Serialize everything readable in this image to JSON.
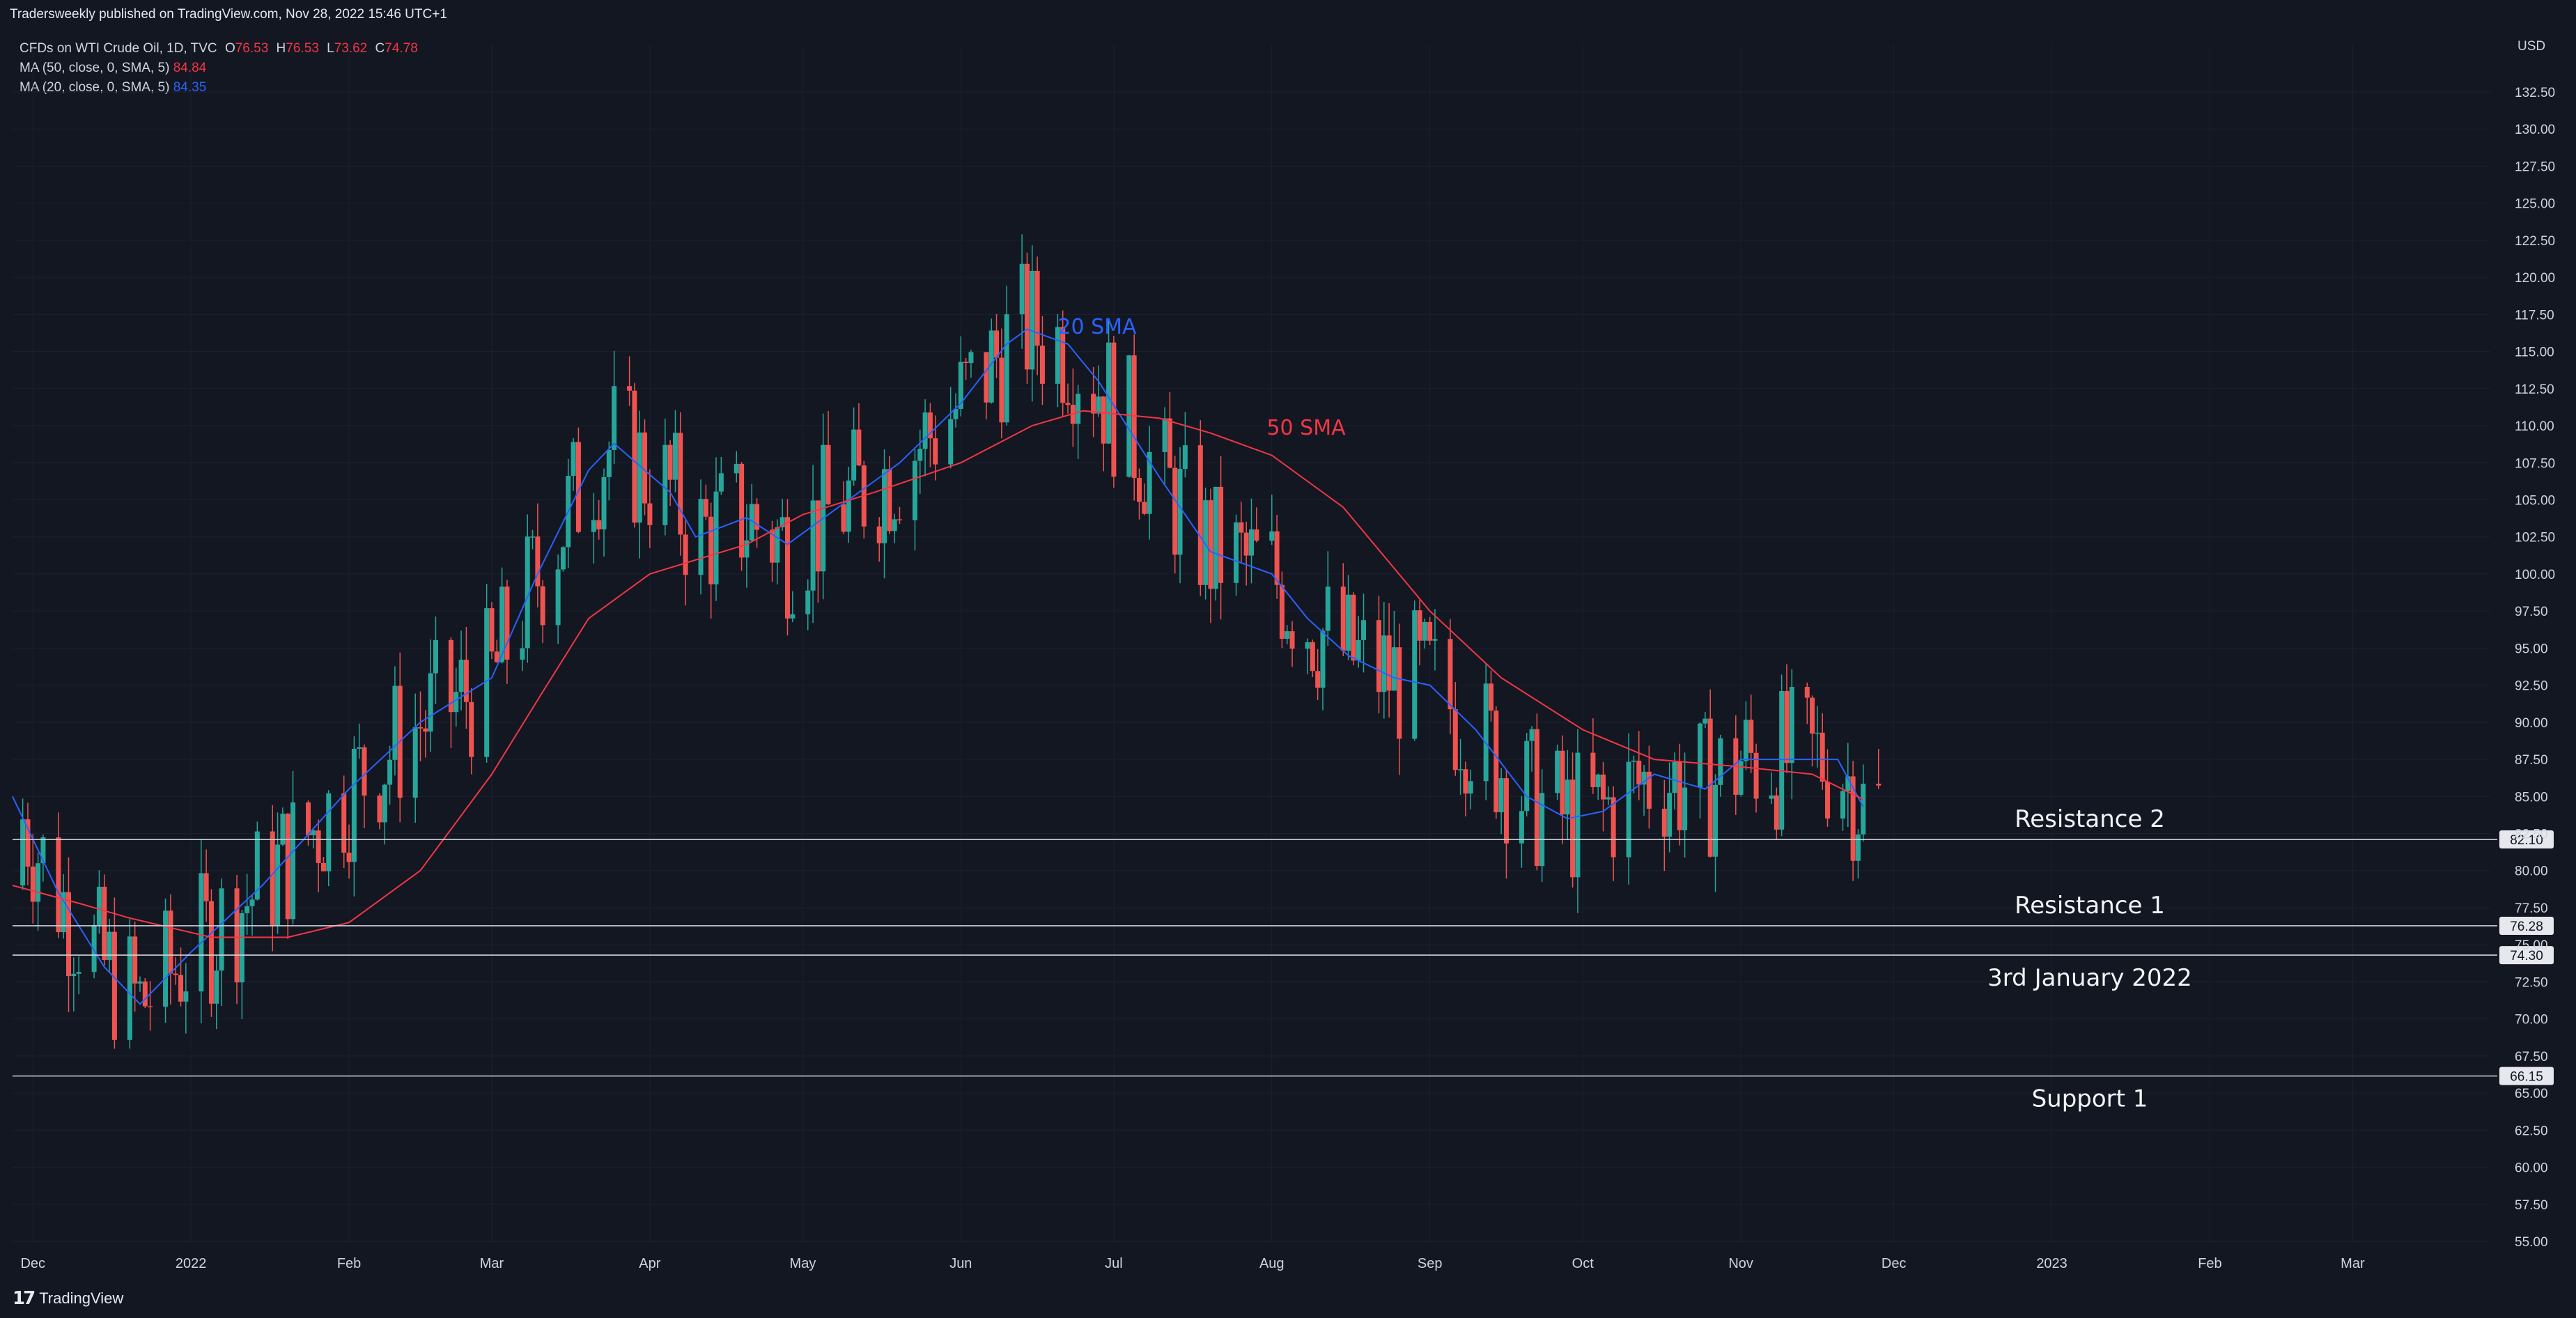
{
  "header": {
    "published": "Tradersweekly published on TradingView.com, Nov 28, 2022 15:46 UTC+1"
  },
  "legend": {
    "symbol": "CFDs on WTI Crude Oil, 1D, TVC",
    "open_label": "O",
    "open": "76.53",
    "high_label": "H",
    "high": "76.53",
    "low_label": "L",
    "low": "73.62",
    "close_label": "C",
    "close": "74.78",
    "ma50_label": "MA (50, close, 0, SMA, 5)",
    "ma50_value": "84.84",
    "ma20_label": "MA (20, close, 0, SMA, 5)",
    "ma20_value": "84.35"
  },
  "footer": {
    "brand": "TradingView",
    "icon": "tradingview-logo-icon"
  },
  "colors": {
    "background": "#131722",
    "up": "#26a69a",
    "down": "#ef5350",
    "sma20": "#2962ff",
    "sma50": "#f23645",
    "text": "#d1d4dc",
    "level": "#d1d4dc"
  },
  "chart_data": {
    "type": "candlestick",
    "title": "CFDs on WTI Crude Oil, 1D, TVC",
    "currency": "USD",
    "y_range": [
      55.0,
      135.0
    ],
    "y_ticks": [
      "132.50",
      "130.00",
      "127.50",
      "125.00",
      "122.50",
      "120.00",
      "117.50",
      "115.00",
      "112.50",
      "110.00",
      "107.50",
      "105.00",
      "102.50",
      "100.00",
      "97.50",
      "95.00",
      "92.50",
      "90.00",
      "87.50",
      "85.00",
      "82.50",
      "80.00",
      "77.50",
      "75.00",
      "72.50",
      "70.00",
      "67.50",
      "65.00",
      "62.50",
      "60.00",
      "57.50",
      "55.00"
    ],
    "x_range": [
      "2021-11-27",
      "2023-03-28"
    ],
    "x_ticks": [
      {
        "date": "2021-12-01",
        "label": "Dec"
      },
      {
        "date": "2022-01-01",
        "label": "2022"
      },
      {
        "date": "2022-02-01",
        "label": "Feb"
      },
      {
        "date": "2022-03-01",
        "label": "Mar"
      },
      {
        "date": "2022-04-01",
        "label": "Apr"
      },
      {
        "date": "2022-05-01",
        "label": "May"
      },
      {
        "date": "2022-06-01",
        "label": "Jun"
      },
      {
        "date": "2022-07-01",
        "label": "Jul"
      },
      {
        "date": "2022-08-01",
        "label": "Aug"
      },
      {
        "date": "2022-09-01",
        "label": "Sep"
      },
      {
        "date": "2022-10-01",
        "label": "Oct"
      },
      {
        "date": "2022-11-01",
        "label": "Nov"
      },
      {
        "date": "2022-12-01",
        "label": "Dec"
      },
      {
        "date": "2023-01-01",
        "label": "2023"
      },
      {
        "date": "2023-02-01",
        "label": "Feb"
      },
      {
        "date": "2023-03-01",
        "label": "Mar"
      }
    ],
    "levels": [
      {
        "name": "Resistance 2",
        "value": 82.1,
        "label": "82.10"
      },
      {
        "name": "Resistance 1",
        "value": 76.28,
        "label": "76.28"
      },
      {
        "name": "3rd January 2022",
        "value": 74.3,
        "label": "74.30"
      },
      {
        "name": "Support 1",
        "value": 66.15,
        "label": "66.15"
      }
    ],
    "annotations": [
      {
        "text": "20 SMA",
        "date": "2022-06-20",
        "price": 116.2,
        "color": "#2962ff"
      },
      {
        "text": "50 SMA",
        "date": "2022-07-31",
        "price": 109.4,
        "color": "#f23645"
      }
    ],
    "series": [
      {
        "name": "MA (20, close, 0, SMA, 5)",
        "color": "#2962ff",
        "points": [
          [
            "2021-11-27",
            85.0
          ],
          [
            "2021-12-06",
            78.5
          ],
          [
            "2021-12-15",
            73.5
          ],
          [
            "2021-12-22",
            71.0
          ],
          [
            "2022-01-01",
            74.5
          ],
          [
            "2022-01-15",
            79.0
          ],
          [
            "2022-02-01",
            85.5
          ],
          [
            "2022-02-15",
            90.0
          ],
          [
            "2022-03-01",
            93.0
          ],
          [
            "2022-03-10",
            100.0
          ],
          [
            "2022-03-20",
            107.0
          ],
          [
            "2022-03-25",
            108.8
          ],
          [
            "2022-04-05",
            105.5
          ],
          [
            "2022-04-10",
            102.5
          ],
          [
            "2022-04-20",
            103.8
          ],
          [
            "2022-04-28",
            102.0
          ],
          [
            "2022-05-08",
            104.5
          ],
          [
            "2022-05-20",
            107.5
          ],
          [
            "2022-06-01",
            111.5
          ],
          [
            "2022-06-10",
            115.5
          ],
          [
            "2022-06-14",
            116.5
          ],
          [
            "2022-06-22",
            115.5
          ],
          [
            "2022-06-28",
            113.0
          ],
          [
            "2022-07-10",
            106.5
          ],
          [
            "2022-07-20",
            101.5
          ],
          [
            "2022-08-01",
            100.0
          ],
          [
            "2022-08-08",
            97.0
          ],
          [
            "2022-08-16",
            94.5
          ],
          [
            "2022-08-25",
            93.0
          ],
          [
            "2022-09-01",
            92.5
          ],
          [
            "2022-09-10",
            89.5
          ],
          [
            "2022-09-20",
            85.0
          ],
          [
            "2022-09-28",
            83.5
          ],
          [
            "2022-10-05",
            84.0
          ],
          [
            "2022-10-15",
            86.5
          ],
          [
            "2022-10-25",
            85.5
          ],
          [
            "2022-11-01",
            87.5
          ],
          [
            "2022-11-12",
            87.5
          ],
          [
            "2022-11-20",
            87.5
          ],
          [
            "2022-11-25",
            84.3
          ]
        ]
      },
      {
        "name": "MA (50, close, 0, SMA, 5)",
        "color": "#f23645",
        "points": [
          [
            "2021-11-27",
            79.0
          ],
          [
            "2021-12-10",
            77.8
          ],
          [
            "2021-12-20",
            76.8
          ],
          [
            "2022-01-05",
            75.5
          ],
          [
            "2022-01-20",
            75.5
          ],
          [
            "2022-02-01",
            76.5
          ],
          [
            "2022-02-15",
            80.0
          ],
          [
            "2022-03-01",
            86.5
          ],
          [
            "2022-03-10",
            91.5
          ],
          [
            "2022-03-20",
            97.0
          ],
          [
            "2022-04-01",
            100.0
          ],
          [
            "2022-04-20",
            102.0
          ],
          [
            "2022-05-01",
            104.0
          ],
          [
            "2022-05-15",
            105.5
          ],
          [
            "2022-06-01",
            107.5
          ],
          [
            "2022-06-15",
            110.0
          ],
          [
            "2022-06-25",
            111.0
          ],
          [
            "2022-07-10",
            110.5
          ],
          [
            "2022-07-20",
            109.5
          ],
          [
            "2022-08-01",
            108.0
          ],
          [
            "2022-08-15",
            104.5
          ],
          [
            "2022-09-01",
            97.5
          ],
          [
            "2022-09-15",
            93.0
          ],
          [
            "2022-10-01",
            89.5
          ],
          [
            "2022-10-15",
            87.5
          ],
          [
            "2022-11-01",
            87.0
          ],
          [
            "2022-11-15",
            86.5
          ],
          [
            "2022-11-25",
            84.8
          ]
        ]
      }
    ]
  }
}
